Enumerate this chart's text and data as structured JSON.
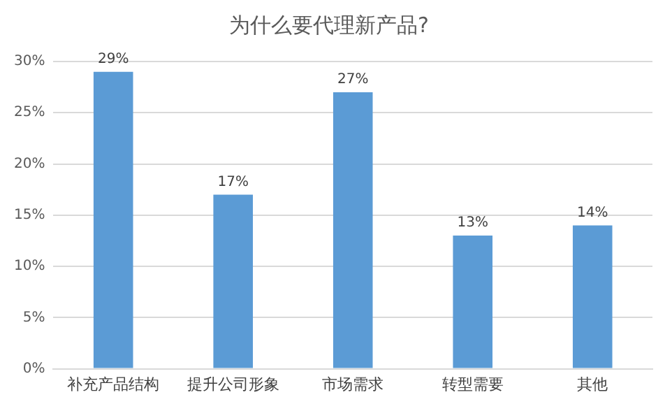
{
  "chart_data": {
    "type": "bar",
    "title": "为什么要代理新产品?",
    "categories": [
      "补充产品结构",
      "提升公司形象",
      "市场需求",
      "转型需要",
      "其他"
    ],
    "values": [
      29,
      17,
      27,
      13,
      14
    ],
    "color": "#5b9bd5",
    "value_labels": [
      "29%",
      "17%",
      "27%",
      "13%",
      "14%"
    ],
    "ylim": [
      0,
      30
    ],
    "yticks": [
      {
        "value": 0,
        "label": "0%"
      },
      {
        "value": 5,
        "label": "5%"
      },
      {
        "value": 10,
        "label": "10%"
      },
      {
        "value": 15,
        "label": "15%"
      },
      {
        "value": 20,
        "label": "20%"
      },
      {
        "value": 25,
        "label": "25%"
      },
      {
        "value": 30,
        "label": "30%"
      }
    ],
    "grid": "y",
    "legend": false
  }
}
